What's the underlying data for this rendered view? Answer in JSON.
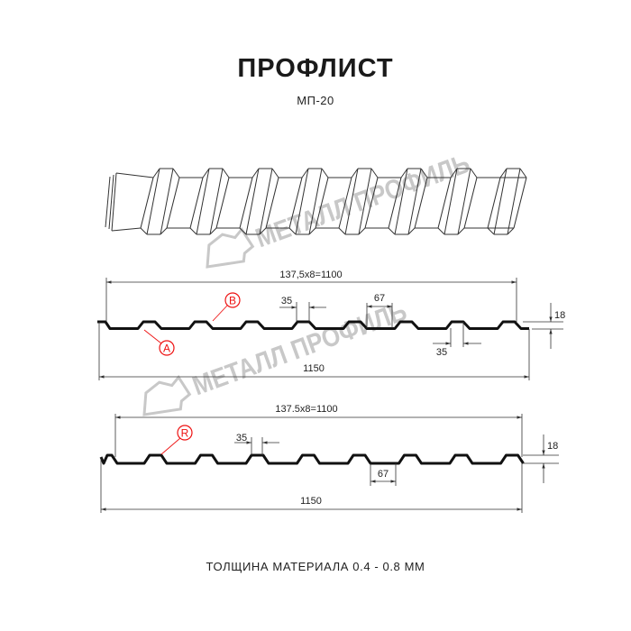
{
  "header": {
    "title": "ПРОФЛИСТ",
    "subtitle": "МП-20"
  },
  "footer": {
    "thickness": "ТОЛЩИНА МАТЕРИАЛА 0.4 - 0.8 ММ"
  },
  "watermark": {
    "text": "МЕТАЛЛ ПРОФИЛЬ"
  },
  "colors": {
    "profile": "#111111",
    "dimension": "#333333",
    "marker": "#e02020",
    "watermark": "#c8c8c8"
  },
  "profile_1": {
    "pitch_dim": "137,5x8=1100",
    "width_dim": "1150",
    "rib_top_dim": "35",
    "rib_bottom_dim": "35",
    "flat_dim": "67",
    "height_dim": "18",
    "marker_a": "A",
    "marker_b": "B"
  },
  "profile_2": {
    "pitch_dim": "137.5x8=1100",
    "width_dim": "1150",
    "rib_top_dim": "35",
    "flat_dim": "67",
    "height_dim": "18",
    "marker_r": "R"
  }
}
